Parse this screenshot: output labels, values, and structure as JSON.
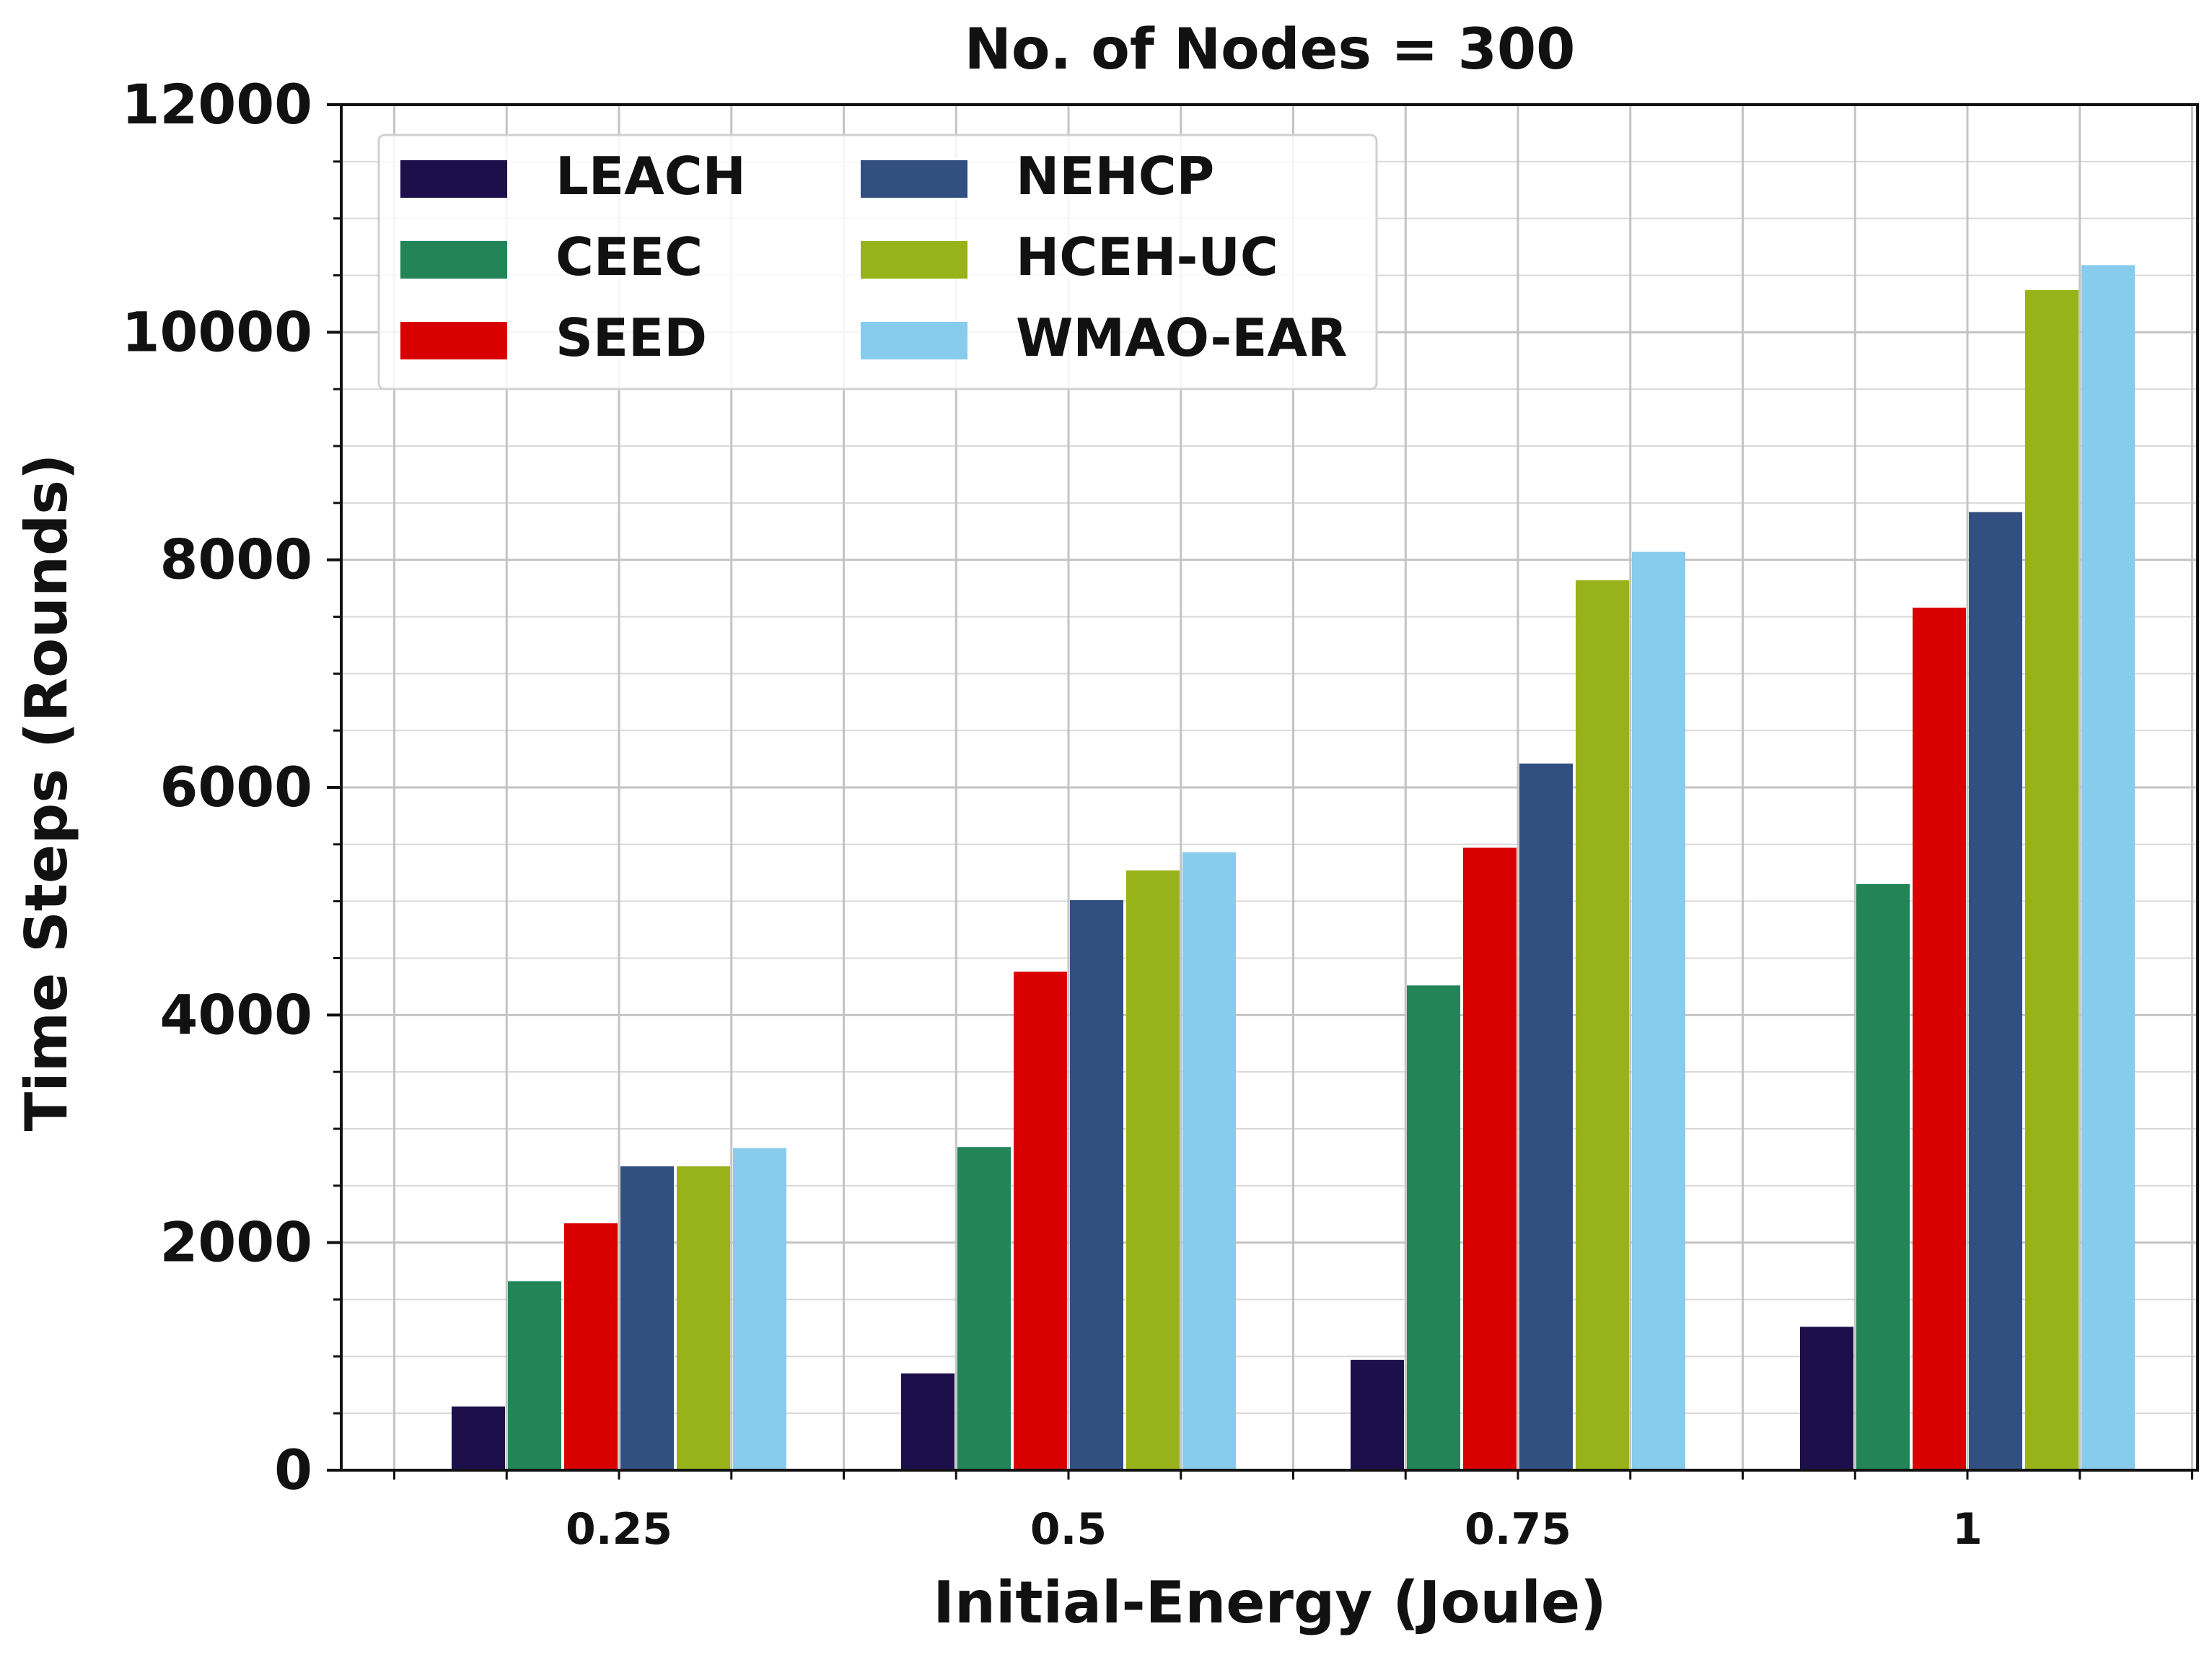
{
  "chart_data": {
    "type": "bar",
    "title": "No. of Nodes = 300",
    "xlabel": "Initial-Energy (Joule)",
    "ylabel": "Time Steps (Rounds)",
    "categories": [
      "0.25",
      "0.5",
      "0.75",
      "1"
    ],
    "ylim": [
      0,
      12000
    ],
    "yticks": [
      "0",
      "2000",
      "4000",
      "6000",
      "8000",
      "10000",
      "12000"
    ],
    "grid": true,
    "legend_position": "top-left",
    "series": [
      {
        "name": "LEACH",
        "color": "#1c0f4a",
        "values": [
          560,
          850,
          970,
          1260
        ]
      },
      {
        "name": "CEEC",
        "color": "#238458",
        "values": [
          1660,
          2840,
          4260,
          5150
        ]
      },
      {
        "name": "SEED",
        "color": "#d90000",
        "values": [
          2170,
          4380,
          5470,
          7580
        ]
      },
      {
        "name": "NEHCP",
        "color": "#324f82",
        "values": [
          2670,
          5010,
          6210,
          8420
        ]
      },
      {
        "name": "HCEH-UC",
        "color": "#98b31a",
        "values": [
          2670,
          5270,
          7820,
          10370
        ]
      },
      {
        "name": "WMAO-EAR",
        "color": "#87ccec",
        "values": [
          2830,
          5430,
          8070,
          10590
        ]
      }
    ]
  }
}
